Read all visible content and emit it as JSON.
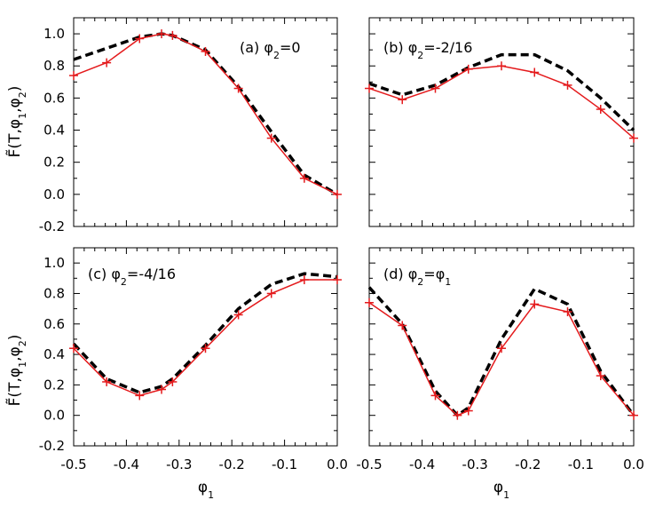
{
  "chart_data": [
    {
      "type": "line",
      "panel": "a",
      "annotation": {
        "prefix": "(a) φ",
        "sub": "2",
        "suffix": "=0"
      },
      "xlim": [
        -0.5,
        0.0
      ],
      "ylim": [
        -0.2,
        1.1
      ],
      "series": [
        {
          "name": "dashed-curve",
          "style": "dashed",
          "color": "#000000",
          "x": [
            -0.5,
            -0.4375,
            -0.375,
            -0.3333,
            -0.3125,
            -0.25,
            -0.1875,
            -0.125,
            -0.0625,
            0.0
          ],
          "y": [
            0.84,
            0.91,
            0.98,
            1.0,
            0.99,
            0.9,
            0.67,
            0.39,
            0.12,
            0.0
          ]
        },
        {
          "name": "marker-curve",
          "style": "solid",
          "color": "#e41a1c",
          "marker": "+",
          "x": [
            -0.5,
            -0.4375,
            -0.375,
            -0.3333,
            -0.3125,
            -0.25,
            -0.1875,
            -0.125,
            -0.0625,
            0.0
          ],
          "y": [
            0.74,
            0.82,
            0.97,
            1.0,
            0.99,
            0.89,
            0.66,
            0.35,
            0.1,
            0.0
          ]
        }
      ]
    },
    {
      "type": "line",
      "panel": "b",
      "annotation": {
        "prefix": "(b) φ",
        "sub": "2",
        "suffix": "=-2/16"
      },
      "xlim": [
        -0.5,
        0.0
      ],
      "ylim": [
        -0.2,
        1.1
      ],
      "series": [
        {
          "name": "dashed-curve",
          "style": "dashed",
          "color": "#000000",
          "x": [
            -0.5,
            -0.4375,
            -0.375,
            -0.3125,
            -0.25,
            -0.1875,
            -0.125,
            -0.0625,
            0.0
          ],
          "y": [
            0.69,
            0.62,
            0.68,
            0.79,
            0.87,
            0.87,
            0.77,
            0.6,
            0.4
          ]
        },
        {
          "name": "marker-curve",
          "style": "solid",
          "color": "#e41a1c",
          "marker": "+",
          "x": [
            -0.5,
            -0.4375,
            -0.375,
            -0.3125,
            -0.25,
            -0.1875,
            -0.125,
            -0.0625,
            0.0
          ],
          "y": [
            0.66,
            0.59,
            0.66,
            0.78,
            0.8,
            0.76,
            0.68,
            0.53,
            0.35
          ]
        }
      ]
    },
    {
      "type": "line",
      "panel": "c",
      "annotation": {
        "prefix": "(c) φ",
        "sub": "2",
        "suffix": "=-4/16"
      },
      "xlim": [
        -0.5,
        0.0
      ],
      "ylim": [
        -0.2,
        1.1
      ],
      "series": [
        {
          "name": "dashed-curve",
          "style": "dashed",
          "color": "#000000",
          "x": [
            -0.5,
            -0.4375,
            -0.375,
            -0.3333,
            -0.3125,
            -0.25,
            -0.1875,
            -0.125,
            -0.0625,
            0.0
          ],
          "y": [
            0.47,
            0.24,
            0.15,
            0.19,
            0.24,
            0.46,
            0.7,
            0.86,
            0.93,
            0.91
          ]
        },
        {
          "name": "marker-curve",
          "style": "solid",
          "color": "#e41a1c",
          "marker": "+",
          "x": [
            -0.5,
            -0.4375,
            -0.375,
            -0.3333,
            -0.3125,
            -0.25,
            -0.1875,
            -0.125,
            -0.0625,
            0.0
          ],
          "y": [
            0.44,
            0.22,
            0.13,
            0.17,
            0.22,
            0.44,
            0.66,
            0.8,
            0.89,
            0.89
          ]
        }
      ]
    },
    {
      "type": "line",
      "panel": "d",
      "annotation": {
        "prefix": "(d) φ",
        "sub": "2",
        "suffix": "=φ",
        "sub2": "1"
      },
      "xlim": [
        -0.5,
        0.0
      ],
      "ylim": [
        -0.2,
        1.1
      ],
      "series": [
        {
          "name": "dashed-curve",
          "style": "dashed",
          "color": "#000000",
          "x": [
            -0.5,
            -0.4375,
            -0.375,
            -0.3333,
            -0.3125,
            -0.25,
            -0.1875,
            -0.125,
            -0.0625,
            0.0
          ],
          "y": [
            0.84,
            0.6,
            0.16,
            0.0,
            0.05,
            0.5,
            0.83,
            0.73,
            0.29,
            0.0
          ]
        },
        {
          "name": "marker-curve",
          "style": "solid",
          "color": "#e41a1c",
          "marker": "+",
          "x": [
            -0.5,
            -0.4375,
            -0.375,
            -0.3333,
            -0.3125,
            -0.25,
            -0.1875,
            -0.125,
            -0.0625,
            0.0
          ],
          "y": [
            0.74,
            0.59,
            0.13,
            0.0,
            0.03,
            0.44,
            0.73,
            0.68,
            0.26,
            0.0
          ]
        }
      ]
    }
  ],
  "axes": {
    "x_tick_labels": [
      "-0.5",
      "-0.4",
      "-0.3",
      "-0.2",
      "-0.1",
      "0.0"
    ],
    "y_tick_labels": [
      "-0.2",
      "0.0",
      "0.2",
      "0.4",
      "0.6",
      "0.8",
      "1.0"
    ],
    "xlabel": {
      "base": "φ",
      "sub": "1"
    },
    "ylabel": {
      "base": "F̃(T,φ",
      "sub1": "1",
      "mid": ",φ",
      "sub2": "2",
      "end": ")"
    }
  }
}
